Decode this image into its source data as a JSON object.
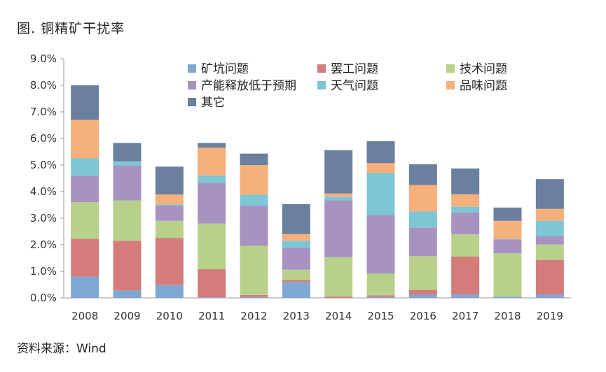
{
  "title": "图. 铜精矿干扰率",
  "source": "资料来源：Wind",
  "colors": {
    "矿坑问题": "#7fa7d4",
    "罢工问题": "#d47b7b",
    "技术问题": "#b9d08b",
    "产能释放低于预期": "#a793c2",
    "天气问题": "#7cc6d6",
    "品味问题": "#f6b07b",
    "其它": "#6b7f9e"
  },
  "chart_data": {
    "type": "bar",
    "stacked": true,
    "categories": [
      "2008",
      "2009",
      "2010",
      "2011",
      "2012",
      "2013",
      "2014",
      "2015",
      "2016",
      "2017",
      "2018",
      "2019"
    ],
    "ylim": [
      0,
      9.0
    ],
    "yticks": [
      "0.0%",
      "1.0%",
      "2.0%",
      "3.0%",
      "4.0%",
      "5.0%",
      "6.0%",
      "7.0%",
      "8.0%",
      "9.0%"
    ],
    "legend_position": "top",
    "grid": false,
    "series": [
      {
        "name": "矿坑问题",
        "values": [
          0.8,
          0.28,
          0.48,
          0.02,
          0.03,
          0.6,
          0.0,
          0.03,
          0.12,
          0.13,
          0.05,
          0.13
        ]
      },
      {
        "name": "罢工问题",
        "values": [
          1.42,
          1.87,
          1.77,
          1.06,
          0.08,
          0.07,
          0.05,
          0.07,
          0.18,
          1.43,
          0.0,
          1.3
        ]
      },
      {
        "name": "技术问题",
        "values": [
          1.38,
          1.52,
          0.65,
          1.72,
          1.85,
          0.39,
          1.48,
          0.82,
          1.27,
          0.83,
          1.63,
          0.58
        ]
      },
      {
        "name": "产能释放低于预期",
        "values": [
          1.0,
          1.32,
          0.58,
          1.53,
          1.5,
          0.84,
          2.14,
          2.2,
          1.08,
          0.82,
          0.52,
          0.32
        ]
      },
      {
        "name": "天气问题",
        "values": [
          0.65,
          0.15,
          0.04,
          0.28,
          0.42,
          0.25,
          0.14,
          1.58,
          0.6,
          0.22,
          0.02,
          0.57
        ]
      },
      {
        "name": "品味问题",
        "values": [
          1.45,
          0.0,
          0.37,
          1.04,
          1.12,
          0.25,
          0.12,
          0.37,
          1.0,
          0.47,
          0.68,
          0.45
        ]
      },
      {
        "name": "其它",
        "values": [
          1.3,
          0.69,
          1.05,
          0.18,
          0.43,
          1.13,
          1.63,
          0.83,
          0.78,
          0.97,
          0.5,
          1.12
        ]
      }
    ]
  }
}
